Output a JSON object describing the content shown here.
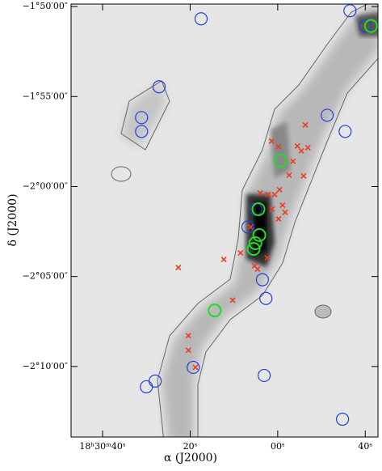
{
  "chart_data": {
    "type": "scatter",
    "xlabel": "α (J2000)",
    "ylabel": "δ (J2000)",
    "xlim": [
      47.2,
      -22.9
    ],
    "ylim": [
      -133.92,
      -109.86
    ],
    "xticks": [
      {
        "value": 40,
        "label": "18ʰ30ᵐ40ˢ"
      },
      {
        "value": 20,
        "label": "20ˢ"
      },
      {
        "value": 0,
        "label": "00ˢ"
      },
      {
        "value": -20,
        "label": "40ˢ"
      }
    ],
    "yticks": [
      {
        "value": -110,
        "label": "−1°50′00″"
      },
      {
        "value": -115,
        "label": "−1°55′00″"
      },
      {
        "value": -120,
        "label": "−2°00′00″"
      },
      {
        "value": -125,
        "label": "−2°05′00″"
      },
      {
        "value": -130,
        "label": "−2°10′00″"
      }
    ],
    "series": [
      {
        "marker": "circle",
        "color": "#1f3fe0",
        "x": [
          17.5,
          -16.5,
          27.1,
          31.1,
          31.1,
          -11.3,
          -15.4,
          2.7,
          19.3,
          28.0,
          30.0,
          3.1,
          -14.8,
          -20.0,
          5.0,
          3.5,
          6.8
        ],
        "values": [
          -110.68,
          -110.23,
          -114.46,
          -116.17,
          -116.94,
          -116.04,
          -116.94,
          -126.22,
          -130.05,
          -130.81,
          -131.13,
          -130.5,
          -132.93,
          -111.08,
          -121.26,
          -125.18,
          -122.25
        ]
      },
      {
        "marker": "circle",
        "color": "#22dd22",
        "x": [
          -21.3,
          -0.6,
          4.4,
          4.2,
          5.1,
          5.5,
          14.4
        ],
        "values": [
          -111.08,
          -118.56,
          -121.26,
          -122.7,
          -123.15,
          -123.47,
          -126.89
        ]
      },
      {
        "marker": "cross",
        "color": "#f03a20",
        "x": [
          1.4,
          -0.2,
          -6.3,
          -4.5,
          -5.4,
          -6.9,
          -3.5,
          4.0,
          2.2,
          0.7,
          -0.4,
          -1.7,
          -0.2,
          -1.1,
          1.3,
          6.2,
          8.5,
          2.4,
          5.3,
          4.6,
          12.3,
          22.7,
          10.3,
          20.4,
          20.4,
          18.8,
          -5.9,
          -2.6
        ],
        "values": [
          -117.48,
          -117.79,
          -116.58,
          -117.75,
          -118.02,
          -117.84,
          -118.6,
          -120.36,
          -120.45,
          -120.45,
          -120.18,
          -121.44,
          -121.8,
          -121.04,
          -121.26,
          -122.25,
          -123.69,
          -123.96,
          -124.41,
          -124.59,
          -124.05,
          -124.5,
          -126.31,
          -128.29,
          -129.1,
          -130.05,
          -119.41,
          -119.37
        ]
      }
    ]
  }
}
